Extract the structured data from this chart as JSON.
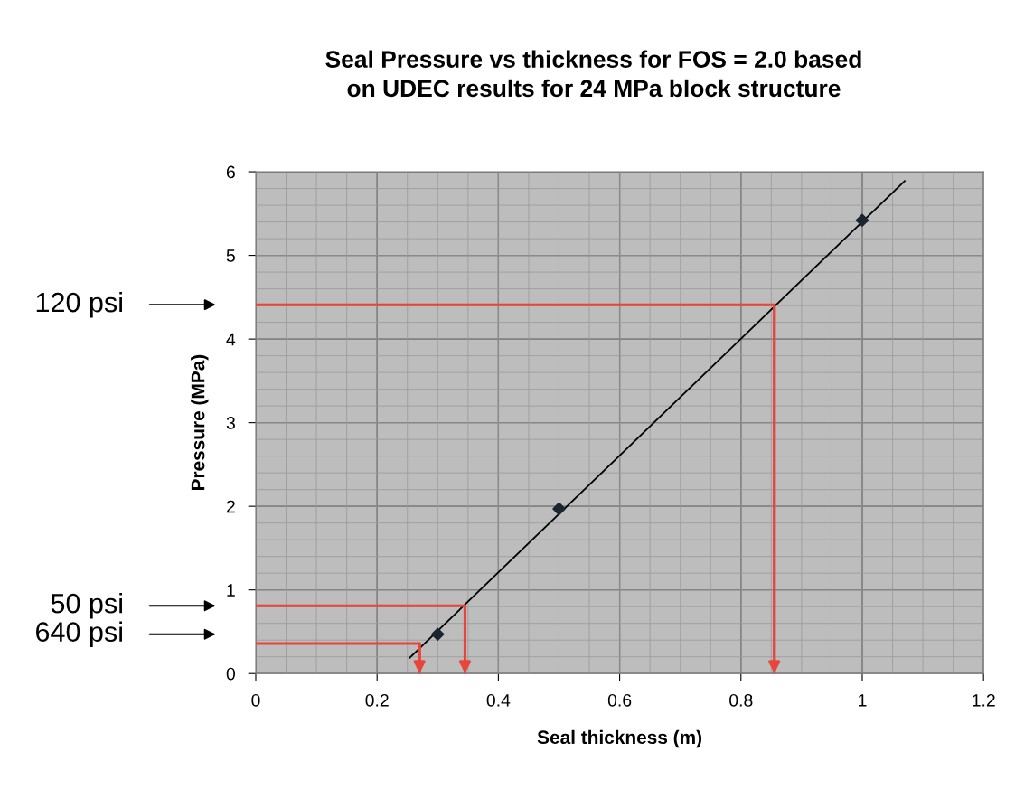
{
  "chart_data": {
    "type": "scatter",
    "title": "Seal Pressure vs thickness for FOS = 2.0 based\non UDEC results for 24 MPa block structure",
    "xlabel": "Seal thickness (m)",
    "ylabel": "Pressure (MPa)",
    "xlim": [
      0,
      1.2
    ],
    "xticks": [
      0,
      0.2,
      0.4,
      0.6,
      0.8,
      1,
      1.2
    ],
    "ylim": [
      0,
      6
    ],
    "yticks": [
      0,
      1,
      2,
      3,
      4,
      5,
      6
    ],
    "grid": true,
    "series": [
      {
        "marker": "diamond",
        "color": "#1a2530",
        "x": [
          0.3,
          0.5,
          1.0
        ],
        "values": [
          0.47,
          1.97,
          5.42
        ]
      },
      {
        "type": "line",
        "color": "#000000",
        "x": [
          0.254,
          1.07
        ],
        "values": [
          0.19,
          5.89
        ]
      },
      {
        "type": "line",
        "color": "#e8463a",
        "x": [
          0,
          0.855,
          0.855
        ],
        "values": [
          4.41,
          4.41,
          0
        ]
      },
      {
        "type": "line",
        "color": "#e8463a",
        "x": [
          0,
          0.345,
          0.345
        ],
        "values": [
          0.81,
          0.81,
          0
        ]
      },
      {
        "type": "line",
        "color": "#e8463a",
        "x": [
          0,
          0.27,
          0.27
        ],
        "values": [
          0.36,
          0.36,
          0
        ]
      }
    ],
    "annotations": [
      "640 psi",
      "120 psi",
      "50 psi"
    ]
  }
}
